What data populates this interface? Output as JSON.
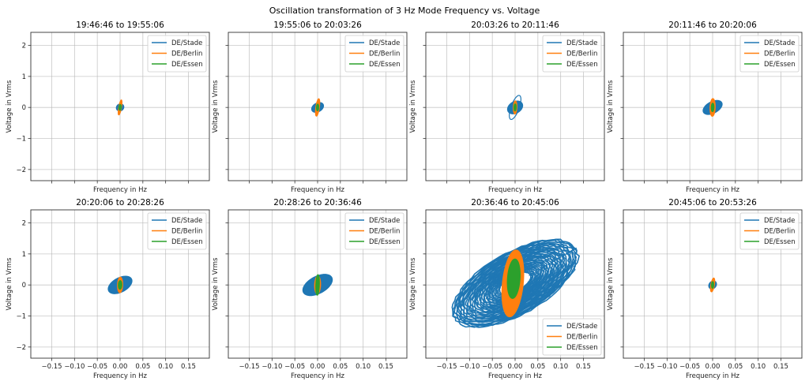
{
  "chart_data": {
    "type": "line",
    "title": "Oscillation transformation of 3 Hz Mode Frequency vs. Voltage",
    "layout": "2 rows x 4 columns, shared axes",
    "xlabel": "Frequency in Hz",
    "ylabel": "Voltage in Vrms",
    "xlim": [
      -0.196,
      0.196
    ],
    "ylim": [
      -2.36,
      2.42
    ],
    "xticks": [
      -0.15,
      -0.1,
      -0.05,
      0.0,
      0.05,
      0.1,
      0.15
    ],
    "xtick_labels": [
      "−0.15",
      "−0.10",
      "−0.05",
      "0.00",
      "0.05",
      "0.10",
      "0.15"
    ],
    "yticks": [
      2,
      1,
      0,
      -1,
      -2
    ],
    "ytick_labels": [
      "2",
      "1",
      "0",
      "−1",
      "−2"
    ],
    "grid": true,
    "series_colors": {
      "DE/Stade": "#1f77b4",
      "DE/Berlin": "#ff7f0e",
      "DE/Essen": "#2ca02c"
    },
    "legend_entries": [
      "DE/Stade",
      "DE/Berlin",
      "DE/Essen"
    ],
    "panels": [
      {
        "title": "19:46:46 to 19:55:06",
        "legend": "top-right",
        "series": [
          {
            "name": "DE/Stade",
            "center": [
              0.0,
              0.0
            ],
            "freq_amp": 0.008,
            "volt_amp": 0.12,
            "tilt_deg": 35,
            "filled": true
          },
          {
            "name": "DE/Berlin",
            "center": [
              0.0,
              0.0
            ],
            "freq_amp": 0.003,
            "volt_amp": 0.33,
            "tilt_deg": 80,
            "filled": true
          },
          {
            "name": "DE/Essen",
            "center": [
              0.0,
              0.0
            ],
            "freq_amp": 0.002,
            "volt_amp": 0.12,
            "tilt_deg": 85,
            "filled": true
          }
        ]
      },
      {
        "title": "19:55:06 to 20:03:26",
        "legend": "top-right",
        "series": [
          {
            "name": "DE/Stade",
            "center": [
              0.0,
              0.0
            ],
            "freq_amp": 0.016,
            "volt_amp": 0.15,
            "tilt_deg": 30,
            "filled": true
          },
          {
            "name": "DE/Berlin",
            "center": [
              0.0,
              0.0
            ],
            "freq_amp": 0.004,
            "volt_amp": 0.38,
            "tilt_deg": 82,
            "filled": true
          },
          {
            "name": "DE/Essen",
            "center": [
              0.0,
              0.0
            ],
            "freq_amp": 0.002,
            "volt_amp": 0.14,
            "tilt_deg": 88,
            "filled": true
          }
        ]
      },
      {
        "title": "20:03:26 to 20:11:46",
        "legend": "top-right",
        "series": [
          {
            "name": "DE/Stade",
            "center": [
              0.0,
              0.0
            ],
            "freq_amp": 0.02,
            "volt_amp": 0.2,
            "tilt_deg": 30,
            "filled": true,
            "outer_loop": {
              "freq_amp": 0.01,
              "volt_amp": 0.55,
              "tilt_deg": 70
            }
          },
          {
            "name": "DE/Berlin",
            "center": [
              0.0,
              0.0
            ],
            "freq_amp": 0.004,
            "volt_amp": 0.28,
            "tilt_deg": 88,
            "filled": true
          },
          {
            "name": "DE/Essen",
            "center": [
              0.0,
              0.0
            ],
            "freq_amp": 0.002,
            "volt_amp": 0.15,
            "tilt_deg": 88,
            "filled": true
          }
        ]
      },
      {
        "title": "20:11:46 to 20:20:06",
        "legend": "top-right",
        "series": [
          {
            "name": "DE/Stade",
            "center": [
              0.0,
              0.0
            ],
            "freq_amp": 0.028,
            "volt_amp": 0.2,
            "tilt_deg": 28,
            "filled": true
          },
          {
            "name": "DE/Berlin",
            "center": [
              0.0,
              0.0
            ],
            "freq_amp": 0.006,
            "volt_amp": 0.38,
            "tilt_deg": 88,
            "filled": true
          },
          {
            "name": "DE/Essen",
            "center": [
              0.0,
              0.0
            ],
            "freq_amp": 0.003,
            "volt_amp": 0.18,
            "tilt_deg": 88,
            "filled": true
          }
        ]
      },
      {
        "title": "20:20:06 to 20:28:26",
        "legend": "top-right",
        "series": [
          {
            "name": "DE/Stade",
            "center": [
              0.0,
              0.0
            ],
            "freq_amp": 0.035,
            "volt_amp": 0.25,
            "tilt_deg": 28,
            "filled": true
          },
          {
            "name": "DE/Berlin",
            "center": [
              0.0,
              0.0
            ],
            "freq_amp": 0.006,
            "volt_amp": 0.33,
            "tilt_deg": 88,
            "filled": true
          },
          {
            "name": "DE/Essen",
            "center": [
              0.0,
              0.0
            ],
            "freq_amp": 0.004,
            "volt_amp": 0.18,
            "tilt_deg": 88,
            "filled": true
          }
        ]
      },
      {
        "title": "20:28:26 to 20:36:46",
        "legend": "top-right",
        "series": [
          {
            "name": "DE/Stade",
            "center": [
              0.0,
              0.0
            ],
            "freq_amp": 0.044,
            "volt_amp": 0.3,
            "tilt_deg": 28,
            "filled": true
          },
          {
            "name": "DE/Berlin",
            "center": [
              0.0,
              0.0
            ],
            "freq_amp": 0.007,
            "volt_amp": 0.38,
            "tilt_deg": 88,
            "filled": true
          },
          {
            "name": "DE/Essen",
            "center": [
              0.0,
              0.0
            ],
            "freq_amp": 0.004,
            "volt_amp": 0.45,
            "tilt_deg": 88,
            "filled": true
          }
        ]
      },
      {
        "title": "20:36:46 to 20:45:06",
        "legend": "bottom-right",
        "series": [
          {
            "name": "DE/Stade",
            "center": [
              0.0,
              0.05
            ],
            "freq_amp": 0.2,
            "volt_amp": 1.1,
            "tilt_deg": 30,
            "filled": false,
            "rings": 12,
            "ring_min": 0.25
          },
          {
            "name": "DE/Berlin",
            "center": [
              -0.005,
              0.05
            ],
            "freq_amp": 0.025,
            "volt_amp": 1.45,
            "tilt_deg": 84,
            "filled": true
          },
          {
            "name": "DE/Essen",
            "center": [
              -0.003,
              0.2
            ],
            "freq_amp": 0.015,
            "volt_amp": 0.85,
            "tilt_deg": 86,
            "filled": true
          }
        ]
      },
      {
        "title": "20:45:06 to 20:53:26",
        "legend": "top-right",
        "series": [
          {
            "name": "DE/Stade",
            "center": [
              0.0,
              0.0
            ],
            "freq_amp": 0.01,
            "volt_amp": 0.12,
            "tilt_deg": 50,
            "filled": true
          },
          {
            "name": "DE/Berlin",
            "center": [
              0.0,
              0.0
            ],
            "freq_amp": 0.004,
            "volt_amp": 0.3,
            "tilt_deg": 80,
            "filled": true
          },
          {
            "name": "DE/Essen",
            "center": [
              0.0,
              0.0
            ],
            "freq_amp": 0.002,
            "volt_amp": 0.14,
            "tilt_deg": 88,
            "filled": true
          }
        ]
      }
    ]
  }
}
